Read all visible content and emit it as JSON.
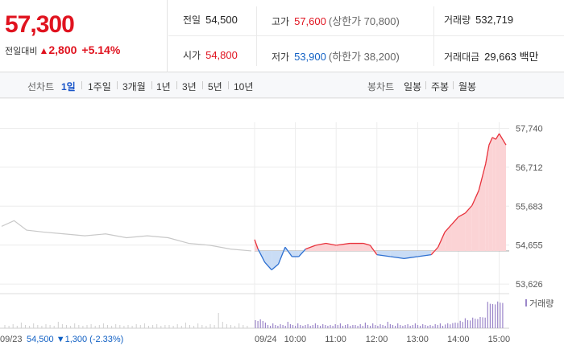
{
  "summary": {
    "price": "57,300",
    "change_label": "전일대비",
    "change_arrow": "▲",
    "change_value": "2,800",
    "change_pct": "+5.14%"
  },
  "stats": {
    "prev_label": "전일",
    "prev": "54,500",
    "high_label": "고가",
    "high": "57,600",
    "upper_limit": "(상한가 70,800)",
    "volume_label": "거래량",
    "volume": "532,719",
    "open_label": "시가",
    "open": "54,800",
    "low_label": "저가",
    "low": "53,900",
    "lower_limit": "(하한가 38,200)",
    "amount_label": "거래대금",
    "amount": "29,663",
    "amount_unit": "백만"
  },
  "tabs": {
    "line_label": "선차트",
    "line_tabs": [
      "1일",
      "1주일",
      "3개월",
      "1년",
      "3년",
      "5년",
      "10년"
    ],
    "line_active": 0,
    "candle_label": "봉차트",
    "candle_tabs": [
      "일봉",
      "주봉",
      "월봉"
    ]
  },
  "chart_data": {
    "type": "line",
    "ylim": [
      53500,
      57900
    ],
    "y_ticks": [
      "57,740",
      "56,712",
      "55,683",
      "54,655",
      "53,626"
    ],
    "y_tick_values": [
      57740,
      56712,
      55683,
      54655,
      53626
    ],
    "baseline": 54500,
    "baseline_note": "09/23 54,500 ▼1,300 (-2.33%)",
    "volume_legend": "거래량",
    "x_labels": [
      "09/23",
      "09/24",
      "10:00",
      "11:00",
      "12:00",
      "13:00",
      "14:00",
      "15:00"
    ],
    "prev_day_series": [
      {
        "t": 0,
        "v": 55150
      },
      {
        "t": 0.3,
        "v": 55300
      },
      {
        "t": 0.6,
        "v": 55050
      },
      {
        "t": 1,
        "v": 55000
      },
      {
        "t": 1.5,
        "v": 54950
      },
      {
        "t": 2,
        "v": 54900
      },
      {
        "t": 2.5,
        "v": 54950
      },
      {
        "t": 3,
        "v": 54850
      },
      {
        "t": 3.5,
        "v": 54900
      },
      {
        "t": 4,
        "v": 54850
      },
      {
        "t": 4.5,
        "v": 54700
      },
      {
        "t": 5,
        "v": 54650
      },
      {
        "t": 5.5,
        "v": 54550
      },
      {
        "t": 6,
        "v": 54500
      }
    ],
    "today_series": [
      {
        "time": "09:00",
        "v": 54800
      },
      {
        "time": "09:05",
        "v": 54550
      },
      {
        "time": "09:15",
        "v": 54200
      },
      {
        "time": "09:25",
        "v": 54000
      },
      {
        "time": "09:35",
        "v": 54150
      },
      {
        "time": "09:45",
        "v": 54600
      },
      {
        "time": "09:55",
        "v": 54350
      },
      {
        "time": "10:05",
        "v": 54350
      },
      {
        "time": "10:15",
        "v": 54550
      },
      {
        "time": "10:30",
        "v": 54650
      },
      {
        "time": "10:45",
        "v": 54700
      },
      {
        "time": "11:00",
        "v": 54650
      },
      {
        "time": "11:20",
        "v": 54700
      },
      {
        "time": "11:40",
        "v": 54700
      },
      {
        "time": "11:50",
        "v": 54650
      },
      {
        "time": "12:00",
        "v": 54400
      },
      {
        "time": "12:20",
        "v": 54350
      },
      {
        "time": "12:40",
        "v": 54300
      },
      {
        "time": "13:00",
        "v": 54350
      },
      {
        "time": "13:20",
        "v": 54400
      },
      {
        "time": "13:30",
        "v": 54600
      },
      {
        "time": "13:40",
        "v": 55000
      },
      {
        "time": "13:50",
        "v": 55200
      },
      {
        "time": "14:00",
        "v": 55400
      },
      {
        "time": "14:10",
        "v": 55500
      },
      {
        "time": "14:20",
        "v": 55700
      },
      {
        "time": "14:30",
        "v": 56100
      },
      {
        "time": "14:40",
        "v": 56800
      },
      {
        "time": "14:45",
        "v": 57300
      },
      {
        "time": "14:50",
        "v": 57500
      },
      {
        "time": "14:55",
        "v": 57450
      },
      {
        "time": "15:00",
        "v": 57600
      },
      {
        "time": "15:10",
        "v": 57300
      }
    ],
    "colors": {
      "up": "#e8323c",
      "down": "#2c6fd1",
      "prev": "#c8c8c8",
      "fill_up": "#fbd3d5",
      "fill_down": "#c9dcf5",
      "volume": "#9b86c9"
    }
  }
}
